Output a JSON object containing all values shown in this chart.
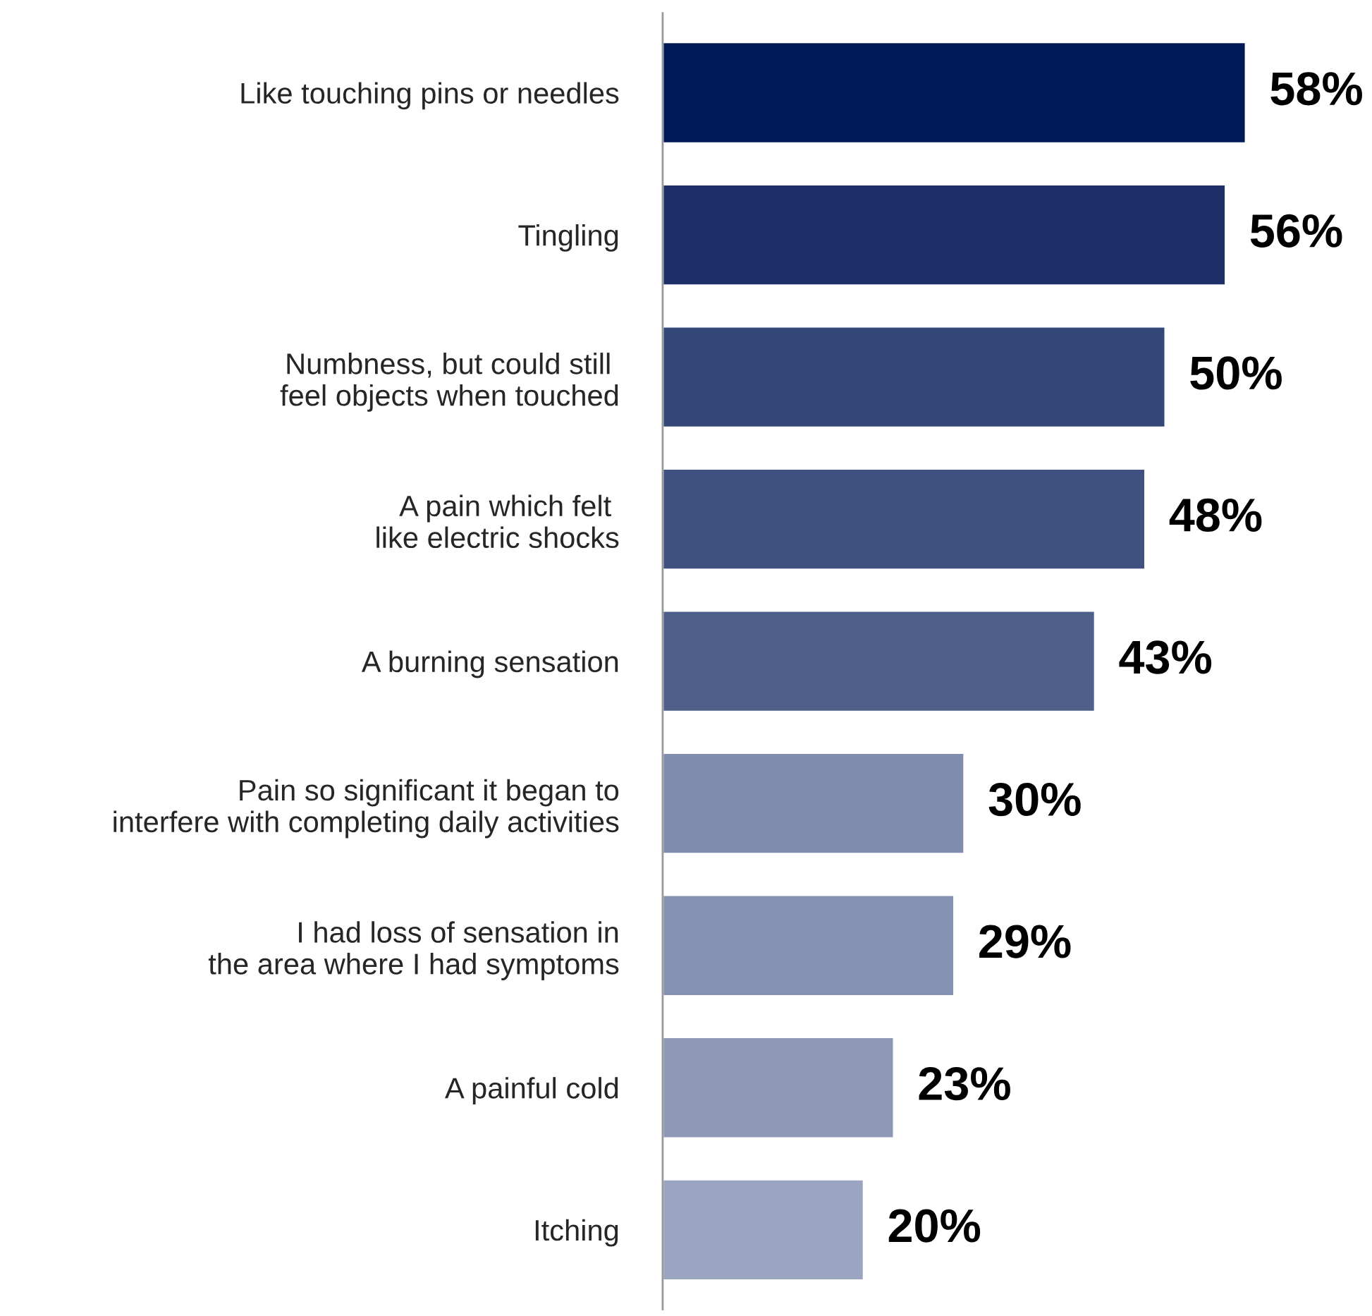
{
  "chart_data": {
    "type": "bar",
    "orientation": "horizontal",
    "categories": [
      "Like touching pins or needles",
      "Tingling",
      "Numbness, but could still \nfeel objects when touched",
      "A pain which felt \nlike electric shocks",
      "A burning sensation",
      "Pain so significant it began to\ninterfere with completing daily activities",
      "I had loss of sensation in\nthe area where I had symptoms",
      "A painful cold",
      "Itching"
    ],
    "values": [
      58,
      56,
      50,
      48,
      43,
      30,
      29,
      23,
      20
    ],
    "value_labels": [
      "58%",
      "56%",
      "50%",
      "48%",
      "43%",
      "30%",
      "29%",
      "23%",
      "20%"
    ],
    "colors": [
      "#001a57",
      "#1c2f66",
      "#334878",
      "#3f5180",
      "#4e6089",
      "#7f8daf",
      "#8492b2",
      "#8e99b8",
      "#9ba4c0"
    ]
  }
}
